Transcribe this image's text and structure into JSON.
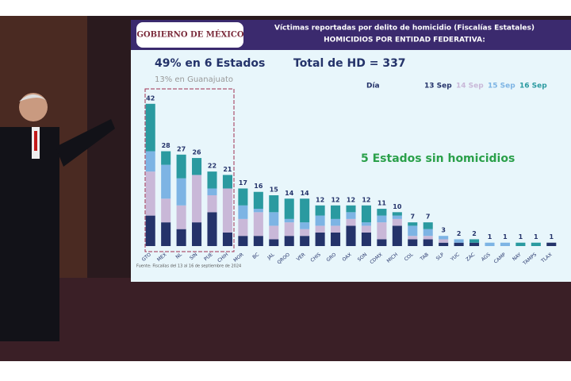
{
  "chart_data": {
    "type": "bar",
    "stacked": true,
    "header": "GOBIERNO DE MÉXICO",
    "title": "Víctimas reportadas por delito de homicidio (Fiscalías Estatales)",
    "subtitle": "HOMICIDIOS POR ENTIDAD FEDERATIVA:",
    "annotations": [
      "49% en 6 Estados",
      "13% en Guanajuato",
      "Total de HD = 337",
      "5 Estados sin homicidios"
    ],
    "legend_title": "Día",
    "source": "Fuente: Fiscalías del 13 al 16 de septiembre de 2024",
    "categories": [
      "GTO",
      "MEX",
      "NL",
      "SIN",
      "PUE",
      "CHIH",
      "MOR",
      "BC",
      "JAL",
      "QROO",
      "VER",
      "CHIS",
      "GRO",
      "OAX",
      "SON",
      "CDMX",
      "MICH",
      "COL",
      "TAB",
      "SLP",
      "YUC",
      "ZAC",
      "AGS",
      "CAMP",
      "NAY",
      "TAMPS",
      "TLAX"
    ],
    "totals": [
      42,
      28,
      27,
      26,
      22,
      21,
      17,
      16,
      15,
      14,
      14,
      12,
      12,
      12,
      12,
      11,
      10,
      7,
      7,
      3,
      2,
      2,
      1,
      1,
      1,
      1,
      1
    ],
    "series": [
      {
        "name": "13 Sep",
        "color": "#24336a",
        "values": [
          9,
          7,
          5,
          7,
          10,
          4,
          3,
          3,
          2,
          3,
          3,
          4,
          4,
          6,
          4,
          2,
          6,
          2,
          2,
          1,
          1,
          1,
          0,
          0,
          0,
          0,
          1
        ]
      },
      {
        "name": "14 Sep",
        "color": "#c9b8d8",
        "values": [
          13,
          7,
          7,
          14,
          5,
          13,
          5,
          7,
          4,
          4,
          2,
          2,
          2,
          2,
          2,
          5,
          2,
          1,
          1,
          1,
          0,
          0,
          0,
          0,
          0,
          0,
          0
        ]
      },
      {
        "name": "15 Sep",
        "color": "#7db4e4",
        "values": [
          6,
          10,
          8,
          0,
          2,
          0,
          4,
          1,
          4,
          1,
          2,
          3,
          2,
          2,
          1,
          2,
          1,
          3,
          2,
          1,
          1,
          0,
          1,
          1,
          0,
          0,
          0
        ]
      },
      {
        "name": "16 Sep",
        "color": "#2a9aa0",
        "values": [
          14,
          4,
          7,
          5,
          5,
          4,
          5,
          5,
          5,
          6,
          7,
          3,
          4,
          2,
          5,
          2,
          1,
          1,
          2,
          0,
          0,
          1,
          0,
          0,
          1,
          1,
          0
        ]
      }
    ],
    "ylim": [
      0,
      45
    ]
  }
}
